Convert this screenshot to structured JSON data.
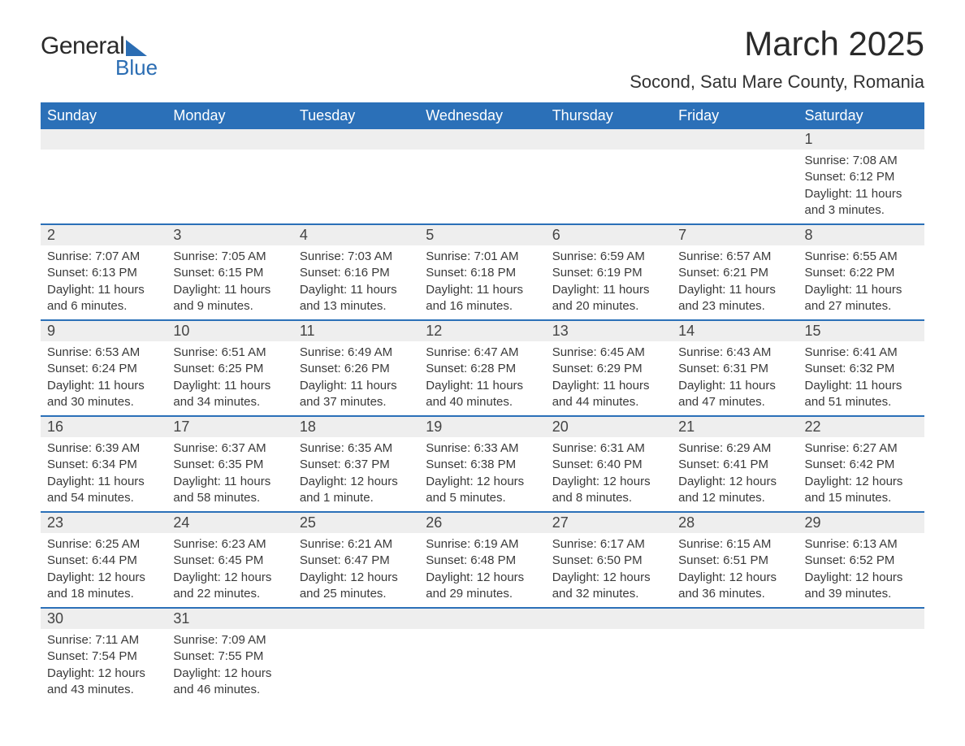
{
  "brand": {
    "general": "General",
    "blue": "Blue"
  },
  "header": {
    "month_title": "March 2025",
    "location": "Socond, Satu Mare County, Romania"
  },
  "styling": {
    "header_bg": "#2b70b8",
    "header_fg": "#ffffff",
    "daynum_bg": "#eeeeee",
    "row_border": "#2b70b8",
    "body_fg": "#3a3a3a",
    "page_bg": "#ffffff",
    "logo_accent": "#2b6db3",
    "title_fontsize_pt": 32,
    "location_fontsize_pt": 16,
    "dayhead_fontsize_pt": 14,
    "cell_fontsize_pt": 11
  },
  "days_of_week": [
    "Sunday",
    "Monday",
    "Tuesday",
    "Wednesday",
    "Thursday",
    "Friday",
    "Saturday"
  ],
  "weeks": [
    {
      "nums": [
        "",
        "",
        "",
        "",
        "",
        "",
        "1"
      ],
      "sunrise": [
        "",
        "",
        "",
        "",
        "",
        "",
        "Sunrise: 7:08 AM"
      ],
      "sunset": [
        "",
        "",
        "",
        "",
        "",
        "",
        "Sunset: 6:12 PM"
      ],
      "day1": [
        "",
        "",
        "",
        "",
        "",
        "",
        "Daylight: 11 hours"
      ],
      "day2": [
        "",
        "",
        "",
        "",
        "",
        "",
        "and 3 minutes."
      ]
    },
    {
      "nums": [
        "2",
        "3",
        "4",
        "5",
        "6",
        "7",
        "8"
      ],
      "sunrise": [
        "Sunrise: 7:07 AM",
        "Sunrise: 7:05 AM",
        "Sunrise: 7:03 AM",
        "Sunrise: 7:01 AM",
        "Sunrise: 6:59 AM",
        "Sunrise: 6:57 AM",
        "Sunrise: 6:55 AM"
      ],
      "sunset": [
        "Sunset: 6:13 PM",
        "Sunset: 6:15 PM",
        "Sunset: 6:16 PM",
        "Sunset: 6:18 PM",
        "Sunset: 6:19 PM",
        "Sunset: 6:21 PM",
        "Sunset: 6:22 PM"
      ],
      "day1": [
        "Daylight: 11 hours",
        "Daylight: 11 hours",
        "Daylight: 11 hours",
        "Daylight: 11 hours",
        "Daylight: 11 hours",
        "Daylight: 11 hours",
        "Daylight: 11 hours"
      ],
      "day2": [
        "and 6 minutes.",
        "and 9 minutes.",
        "and 13 minutes.",
        "and 16 minutes.",
        "and 20 minutes.",
        "and 23 minutes.",
        "and 27 minutes."
      ]
    },
    {
      "nums": [
        "9",
        "10",
        "11",
        "12",
        "13",
        "14",
        "15"
      ],
      "sunrise": [
        "Sunrise: 6:53 AM",
        "Sunrise: 6:51 AM",
        "Sunrise: 6:49 AM",
        "Sunrise: 6:47 AM",
        "Sunrise: 6:45 AM",
        "Sunrise: 6:43 AM",
        "Sunrise: 6:41 AM"
      ],
      "sunset": [
        "Sunset: 6:24 PM",
        "Sunset: 6:25 PM",
        "Sunset: 6:26 PM",
        "Sunset: 6:28 PM",
        "Sunset: 6:29 PM",
        "Sunset: 6:31 PM",
        "Sunset: 6:32 PM"
      ],
      "day1": [
        "Daylight: 11 hours",
        "Daylight: 11 hours",
        "Daylight: 11 hours",
        "Daylight: 11 hours",
        "Daylight: 11 hours",
        "Daylight: 11 hours",
        "Daylight: 11 hours"
      ],
      "day2": [
        "and 30 minutes.",
        "and 34 minutes.",
        "and 37 minutes.",
        "and 40 minutes.",
        "and 44 minutes.",
        "and 47 minutes.",
        "and 51 minutes."
      ]
    },
    {
      "nums": [
        "16",
        "17",
        "18",
        "19",
        "20",
        "21",
        "22"
      ],
      "sunrise": [
        "Sunrise: 6:39 AM",
        "Sunrise: 6:37 AM",
        "Sunrise: 6:35 AM",
        "Sunrise: 6:33 AM",
        "Sunrise: 6:31 AM",
        "Sunrise: 6:29 AM",
        "Sunrise: 6:27 AM"
      ],
      "sunset": [
        "Sunset: 6:34 PM",
        "Sunset: 6:35 PM",
        "Sunset: 6:37 PM",
        "Sunset: 6:38 PM",
        "Sunset: 6:40 PM",
        "Sunset: 6:41 PM",
        "Sunset: 6:42 PM"
      ],
      "day1": [
        "Daylight: 11 hours",
        "Daylight: 11 hours",
        "Daylight: 12 hours",
        "Daylight: 12 hours",
        "Daylight: 12 hours",
        "Daylight: 12 hours",
        "Daylight: 12 hours"
      ],
      "day2": [
        "and 54 minutes.",
        "and 58 minutes.",
        "and 1 minute.",
        "and 5 minutes.",
        "and 8 minutes.",
        "and 12 minutes.",
        "and 15 minutes."
      ]
    },
    {
      "nums": [
        "23",
        "24",
        "25",
        "26",
        "27",
        "28",
        "29"
      ],
      "sunrise": [
        "Sunrise: 6:25 AM",
        "Sunrise: 6:23 AM",
        "Sunrise: 6:21 AM",
        "Sunrise: 6:19 AM",
        "Sunrise: 6:17 AM",
        "Sunrise: 6:15 AM",
        "Sunrise: 6:13 AM"
      ],
      "sunset": [
        "Sunset: 6:44 PM",
        "Sunset: 6:45 PM",
        "Sunset: 6:47 PM",
        "Sunset: 6:48 PM",
        "Sunset: 6:50 PM",
        "Sunset: 6:51 PM",
        "Sunset: 6:52 PM"
      ],
      "day1": [
        "Daylight: 12 hours",
        "Daylight: 12 hours",
        "Daylight: 12 hours",
        "Daylight: 12 hours",
        "Daylight: 12 hours",
        "Daylight: 12 hours",
        "Daylight: 12 hours"
      ],
      "day2": [
        "and 18 minutes.",
        "and 22 minutes.",
        "and 25 minutes.",
        "and 29 minutes.",
        "and 32 minutes.",
        "and 36 minutes.",
        "and 39 minutes."
      ]
    },
    {
      "nums": [
        "30",
        "31",
        "",
        "",
        "",
        "",
        ""
      ],
      "sunrise": [
        "Sunrise: 7:11 AM",
        "Sunrise: 7:09 AM",
        "",
        "",
        "",
        "",
        ""
      ],
      "sunset": [
        "Sunset: 7:54 PM",
        "Sunset: 7:55 PM",
        "",
        "",
        "",
        "",
        ""
      ],
      "day1": [
        "Daylight: 12 hours",
        "Daylight: 12 hours",
        "",
        "",
        "",
        "",
        ""
      ],
      "day2": [
        "and 43 minutes.",
        "and 46 minutes.",
        "",
        "",
        "",
        "",
        ""
      ]
    }
  ]
}
